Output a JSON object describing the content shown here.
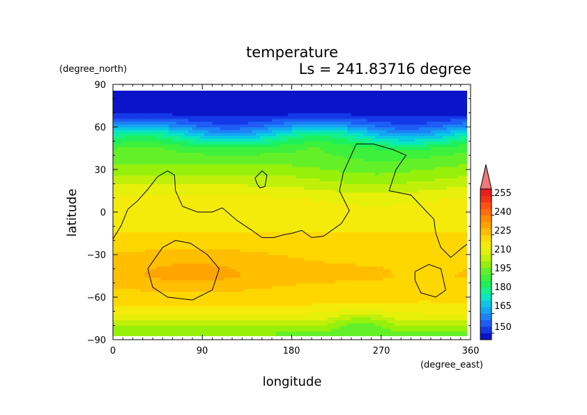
{
  "chart_data": {
    "type": "heatmap",
    "title": "temperature",
    "subtitle": "Ls = 241.83716 degree",
    "xlabel": "longitude",
    "ylabel": "latitude",
    "x_units": "(degree_east)",
    "y_units": "(degree_north)",
    "xlim": [
      0,
      360
    ],
    "ylim": [
      -90,
      90
    ],
    "x_ticks": [
      "0",
      "90",
      "180",
      "270",
      "360"
    ],
    "y_ticks": [
      "90",
      "60",
      "30",
      "0",
      "−30",
      "−60",
      "−90"
    ],
    "colorbar": {
      "labels": [
        "255",
        "240",
        "225",
        "210",
        "195",
        "180",
        "165",
        "150"
      ],
      "label_values": [
        255,
        240,
        225,
        210,
        195,
        180,
        165,
        150
      ],
      "levels": [
        145,
        150,
        155,
        160,
        165,
        170,
        175,
        180,
        185,
        190,
        195,
        200,
        205,
        210,
        215,
        220,
        225,
        230,
        235,
        240,
        245,
        250,
        255,
        260
      ],
      "colors": [
        "#0a14c8",
        "#1438e8",
        "#1e5cf5",
        "#1c82f6",
        "#14a6f2",
        "#0ac8e6",
        "#0ae6c0",
        "#14f08c",
        "#1ef05a",
        "#3cf03c",
        "#64f028",
        "#96f00a",
        "#c0f00a",
        "#e6f00a",
        "#f5eb0a",
        "#ffd700",
        "#ffbe00",
        "#ffa500",
        "#ff8c00",
        "#ff6e0a",
        "#ff5014",
        "#f53219",
        "#eb1e1e"
      ],
      "overflow_color": "#f07878"
    },
    "zonal_profile": [
      {
        "lat": -85,
        "value": 200
      },
      {
        "lat": -75,
        "value": 212
      },
      {
        "lat": -65,
        "value": 220
      },
      {
        "lat": -45,
        "value": 226
      },
      {
        "lat": -30,
        "value": 224
      },
      {
        "lat": -10,
        "value": 219
      },
      {
        "lat": 10,
        "value": 216
      },
      {
        "lat": 30,
        "value": 203
      },
      {
        "lat": 45,
        "value": 193
      },
      {
        "lat": 55,
        "value": 175
      },
      {
        "lat": 62,
        "value": 160
      },
      {
        "lat": 70,
        "value": 148
      },
      {
        "lat": 85,
        "value": 147
      }
    ],
    "contour_level": 216,
    "contours": [
      [
        [
          0,
          -19
        ],
        [
          8,
          -10
        ],
        [
          15,
          2
        ],
        [
          25,
          8
        ],
        [
          35,
          16
        ],
        [
          45,
          25
        ],
        [
          55,
          29
        ],
        [
          62,
          26
        ],
        [
          63,
          15
        ],
        [
          70,
          4
        ],
        [
          85,
          0
        ],
        [
          100,
          0
        ],
        [
          110,
          3
        ],
        [
          125,
          -6
        ],
        [
          140,
          -13
        ],
        [
          150,
          -18
        ],
        [
          162,
          -18
        ],
        [
          172,
          -16
        ],
        [
          180,
          -15
        ],
        [
          190,
          -13
        ],
        [
          200,
          -18
        ],
        [
          212,
          -17
        ],
        [
          230,
          -8
        ],
        [
          238,
          1
        ],
        [
          228,
          15
        ],
        [
          232,
          28
        ],
        [
          245,
          48
        ],
        [
          262,
          48
        ],
        [
          282,
          44
        ],
        [
          295,
          40
        ],
        [
          285,
          30
        ],
        [
          278,
          15
        ],
        [
          300,
          12
        ],
        [
          312,
          3
        ],
        [
          323,
          -5
        ],
        [
          325,
          -15
        ],
        [
          330,
          -25
        ],
        [
          340,
          -32
        ],
        [
          352,
          -25
        ],
        [
          360,
          -21
        ]
      ],
      [
        [
          143,
          24
        ],
        [
          150,
          29
        ],
        [
          155,
          26
        ],
        [
          153,
          18
        ],
        [
          148,
          17
        ],
        [
          145,
          20
        ],
        [
          143,
          24
        ]
      ],
      [
        [
          35,
          -40
        ],
        [
          50,
          -25
        ],
        [
          63,
          -20
        ],
        [
          78,
          -22
        ],
        [
          95,
          -30
        ],
        [
          107,
          -40
        ],
        [
          100,
          -55
        ],
        [
          80,
          -62
        ],
        [
          55,
          -60
        ],
        [
          40,
          -53
        ],
        [
          35,
          -40
        ]
      ],
      [
        [
          304,
          -42
        ],
        [
          318,
          -37
        ],
        [
          330,
          -40
        ],
        [
          335,
          -55
        ],
        [
          325,
          -60
        ],
        [
          310,
          -57
        ],
        [
          304,
          -48
        ],
        [
          304,
          -42
        ]
      ]
    ]
  }
}
